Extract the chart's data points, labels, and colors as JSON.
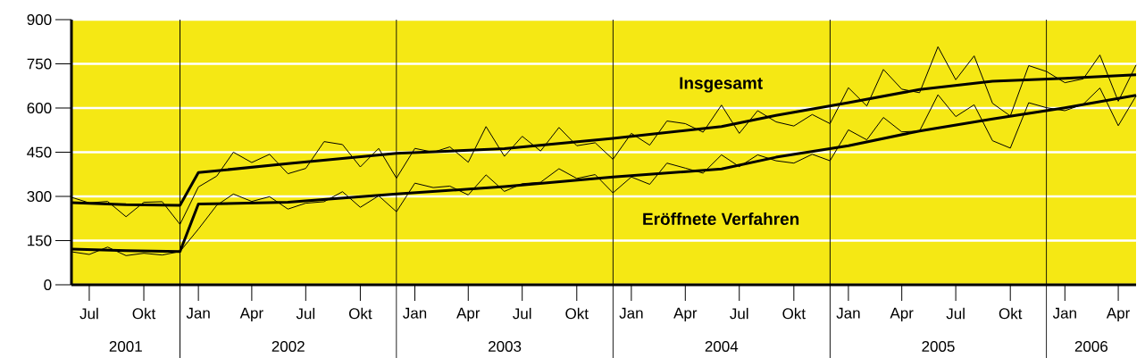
{
  "chart_data": {
    "type": "line",
    "x": [
      "2001-06",
      "2001-07",
      "2001-08",
      "2001-09",
      "2001-10",
      "2001-11",
      "2001-12",
      "2002-01",
      "2002-02",
      "2002-03",
      "2002-04",
      "2002-05",
      "2002-06",
      "2002-07",
      "2002-08",
      "2002-09",
      "2002-10",
      "2002-11",
      "2002-12",
      "2003-01",
      "2003-02",
      "2003-03",
      "2003-04",
      "2003-05",
      "2003-06",
      "2003-07",
      "2003-08",
      "2003-09",
      "2003-10",
      "2003-11",
      "2003-12",
      "2004-01",
      "2004-02",
      "2004-03",
      "2004-04",
      "2004-05",
      "2004-06",
      "2004-07",
      "2004-08",
      "2004-09",
      "2004-10",
      "2004-11",
      "2004-12",
      "2005-01",
      "2005-02",
      "2005-03",
      "2005-04",
      "2005-05",
      "2005-06",
      "2005-07",
      "2005-08",
      "2005-09",
      "2005-10",
      "2005-11",
      "2005-12",
      "2006-01",
      "2006-02",
      "2006-03",
      "2006-04",
      "2006-05"
    ],
    "series": [
      {
        "name": "Insgesamt",
        "color": "#000000",
        "values": [
          297,
          278,
          283,
          231,
          280,
          282,
          205,
          332,
          369,
          450,
          415,
          443,
          377,
          395,
          486,
          476,
          400,
          463,
          362,
          463,
          450,
          468,
          416,
          537,
          436,
          504,
          454,
          534,
          472,
          482,
          426,
          514,
          474,
          556,
          547,
          518,
          610,
          514,
          591,
          553,
          539,
          578,
          547,
          669,
          607,
          731,
          664,
          652,
          808,
          696,
          777,
          616,
          573,
          744,
          724,
          686,
          699,
          780,
          623,
          746
        ]
      },
      {
        "name": "Eröffnete Verfahren",
        "color": "#000000",
        "values": [
          112,
          103,
          128,
          99,
          107,
          101,
          113,
          189,
          270,
          308,
          283,
          299,
          257,
          277,
          282,
          316,
          263,
          302,
          248,
          345,
          330,
          335,
          305,
          373,
          317,
          343,
          348,
          394,
          361,
          374,
          312,
          366,
          341,
          413,
          396,
          379,
          441,
          401,
          441,
          421,
          413,
          443,
          421,
          526,
          492,
          568,
          519,
          522,
          645,
          571,
          611,
          489,
          464,
          618,
          601,
          591,
          613,
          668,
          540,
          641
        ]
      },
      {
        "color": "#000000",
        "x": [
          "2001-06",
          "2001-09",
          "2001-12",
          "2002-01",
          "2002-06",
          "2002-12",
          "2003-06",
          "2003-12",
          "2004-06",
          "2004-09",
          "2005-01",
          "2005-05",
          "2005-09",
          "2006-01",
          "2006-05"
        ],
        "values": [
          279,
          272,
          270,
          381,
          411,
          446,
          462,
          497,
          537,
          575,
          618,
          663,
          691,
          701,
          713
        ]
      },
      {
        "color": "#000000",
        "x": [
          "2001-06",
          "2001-09",
          "2001-12",
          "2002-01",
          "2002-06",
          "2002-12",
          "2003-06",
          "2003-12",
          "2004-06",
          "2004-09",
          "2005-01",
          "2005-05",
          "2005-09",
          "2006-01",
          "2006-05"
        ],
        "values": [
          121,
          116,
          113,
          274,
          280,
          308,
          333,
          366,
          393,
          433,
          472,
          522,
          563,
          601,
          643
        ]
      }
    ],
    "xlim": [
      "2001-06",
      "2006-05"
    ],
    "xticks": [
      {
        "value": "2001-07",
        "label": "Jul"
      },
      {
        "value": "2001-10",
        "label": "Okt"
      },
      {
        "value": "2002-01",
        "label": "Jan"
      },
      {
        "value": "2002-04",
        "label": "Apr"
      },
      {
        "value": "2002-07",
        "label": "Jul"
      },
      {
        "value": "2002-10",
        "label": "Okt"
      },
      {
        "value": "2003-01",
        "label": "Jan"
      },
      {
        "value": "2003-04",
        "label": "Apr"
      },
      {
        "value": "2003-07",
        "label": "Jul"
      },
      {
        "value": "2003-10",
        "label": "Okt"
      },
      {
        "value": "2004-01",
        "label": "Jan"
      },
      {
        "value": "2004-04",
        "label": "Apr"
      },
      {
        "value": "2004-07",
        "label": "Jul"
      },
      {
        "value": "2004-10",
        "label": "Okt"
      },
      {
        "value": "2005-01",
        "label": "Jan"
      },
      {
        "value": "2005-04",
        "label": "Apr"
      },
      {
        "value": "2005-07",
        "label": "Jul"
      },
      {
        "value": "2005-10",
        "label": "Okt"
      },
      {
        "value": "2006-01",
        "label": "Jan"
      },
      {
        "value": "2006-04",
        "label": "Apr"
      }
    ],
    "ylim": [
      0,
      900
    ],
    "yticks": [
      0,
      150,
      300,
      450,
      600,
      750,
      900
    ],
    "grid": "y",
    "legend": false,
    "marker": "none",
    "line_style": "solid",
    "ref_lines": [
      {
        "axis": "x",
        "value": "2001-12",
        "color": "#000000"
      },
      {
        "axis": "x",
        "value": "2002-12",
        "color": "#000000"
      },
      {
        "axis": "x",
        "value": "2003-12",
        "color": "#000000"
      },
      {
        "axis": "x",
        "value": "2004-12",
        "color": "#000000"
      },
      {
        "axis": "x",
        "value": "2005-12",
        "color": "#000000"
      }
    ],
    "annotations": [
      "2001",
      "2002",
      "2003",
      "2004",
      "2005",
      "2006"
    ]
  }
}
